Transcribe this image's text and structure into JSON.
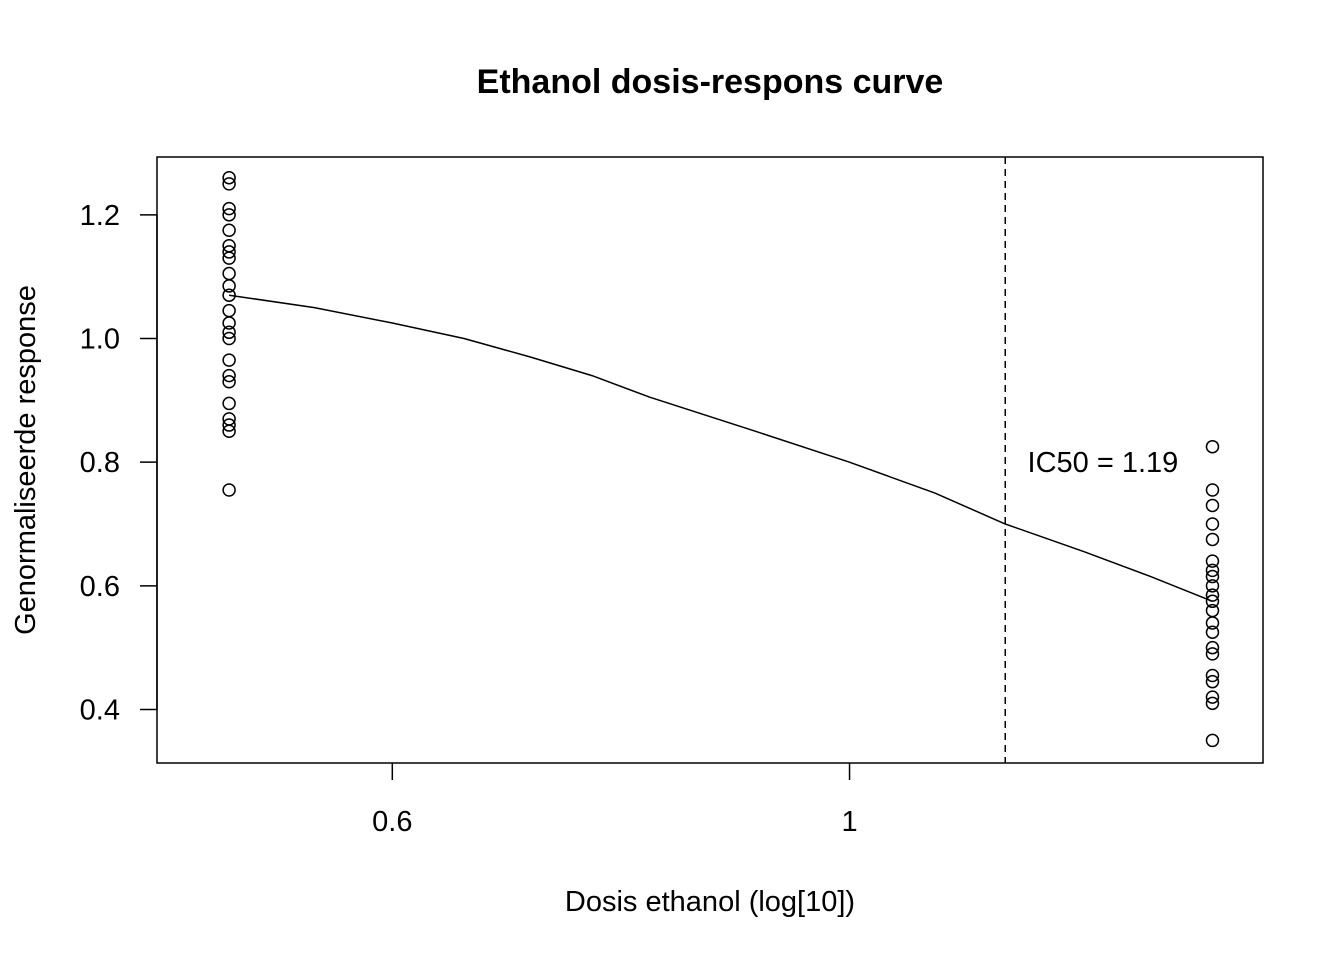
{
  "chart_data": {
    "type": "scatter",
    "title": "Ethanol dosis-respons curve",
    "xlabel": "Dosis ethanol (log[10])",
    "ylabel": "Genormaliseerde response",
    "x_scale": "log",
    "xlim": [
      0.4613,
      1.5871
    ],
    "ylim": [
      0.3135,
      1.2935
    ],
    "x_ticks": [
      0.6,
      1
    ],
    "x_tick_labels": [
      "0.6",
      "1"
    ],
    "y_ticks": [
      0.4,
      0.6,
      0.8,
      1.0,
      1.2
    ],
    "y_tick_labels": [
      "0.4",
      "0.6",
      "0.8",
      "1.0",
      "1.2"
    ],
    "grid": false,
    "legend": "none",
    "series": [
      {
        "kind": "points",
        "marker": "open-circle",
        "points": [
          {
            "x": 0.5,
            "y": 1.26
          },
          {
            "x": 0.5,
            "y": 1.25
          },
          {
            "x": 0.5,
            "y": 1.21
          },
          {
            "x": 0.5,
            "y": 1.2
          },
          {
            "x": 0.5,
            "y": 1.175
          },
          {
            "x": 0.5,
            "y": 1.15
          },
          {
            "x": 0.5,
            "y": 1.14
          },
          {
            "x": 0.5,
            "y": 1.13
          },
          {
            "x": 0.5,
            "y": 1.105
          },
          {
            "x": 0.5,
            "y": 1.085
          },
          {
            "x": 0.5,
            "y": 1.07
          },
          {
            "x": 0.5,
            "y": 1.045
          },
          {
            "x": 0.5,
            "y": 1.025
          },
          {
            "x": 0.5,
            "y": 1.01
          },
          {
            "x": 0.5,
            "y": 1.0
          },
          {
            "x": 0.5,
            "y": 0.965
          },
          {
            "x": 0.5,
            "y": 0.94
          },
          {
            "x": 0.5,
            "y": 0.93
          },
          {
            "x": 0.5,
            "y": 0.895
          },
          {
            "x": 0.5,
            "y": 0.87
          },
          {
            "x": 0.5,
            "y": 0.86
          },
          {
            "x": 0.5,
            "y": 0.85
          },
          {
            "x": 0.5,
            "y": 0.755
          },
          {
            "x": 1.5,
            "y": 0.825
          },
          {
            "x": 1.5,
            "y": 0.755
          },
          {
            "x": 1.5,
            "y": 0.73
          },
          {
            "x": 1.5,
            "y": 0.7
          },
          {
            "x": 1.5,
            "y": 0.675
          },
          {
            "x": 1.5,
            "y": 0.64
          },
          {
            "x": 1.5,
            "y": 0.625
          },
          {
            "x": 1.5,
            "y": 0.615
          },
          {
            "x": 1.5,
            "y": 0.6
          },
          {
            "x": 1.5,
            "y": 0.585
          },
          {
            "x": 1.5,
            "y": 0.575
          },
          {
            "x": 1.5,
            "y": 0.56
          },
          {
            "x": 1.5,
            "y": 0.54
          },
          {
            "x": 1.5,
            "y": 0.525
          },
          {
            "x": 1.5,
            "y": 0.5
          },
          {
            "x": 1.5,
            "y": 0.49
          },
          {
            "x": 1.5,
            "y": 0.455
          },
          {
            "x": 1.5,
            "y": 0.445
          },
          {
            "x": 1.5,
            "y": 0.42
          },
          {
            "x": 1.5,
            "y": 0.41
          },
          {
            "x": 1.5,
            "y": 0.35
          }
        ]
      },
      {
        "kind": "line",
        "style": "solid",
        "points": [
          {
            "x": 0.5,
            "y": 1.07
          },
          {
            "x": 0.55,
            "y": 1.05
          },
          {
            "x": 0.6,
            "y": 1.025
          },
          {
            "x": 0.65,
            "y": 1.0
          },
          {
            "x": 0.7,
            "y": 0.97
          },
          {
            "x": 0.75,
            "y": 0.94
          },
          {
            "x": 0.8,
            "y": 0.905
          },
          {
            "x": 0.9,
            "y": 0.85
          },
          {
            "x": 1.0,
            "y": 0.8
          },
          {
            "x": 1.1,
            "y": 0.75
          },
          {
            "x": 1.19,
            "y": 0.7
          },
          {
            "x": 1.3,
            "y": 0.655
          },
          {
            "x": 1.4,
            "y": 0.615
          },
          {
            "x": 1.5,
            "y": 0.575
          }
        ]
      }
    ],
    "vline": {
      "x": 1.19,
      "style": "dashed"
    },
    "annotations": [
      {
        "text": "IC50 = 1.19",
        "x": 1.22,
        "y": 0.8
      }
    ]
  }
}
